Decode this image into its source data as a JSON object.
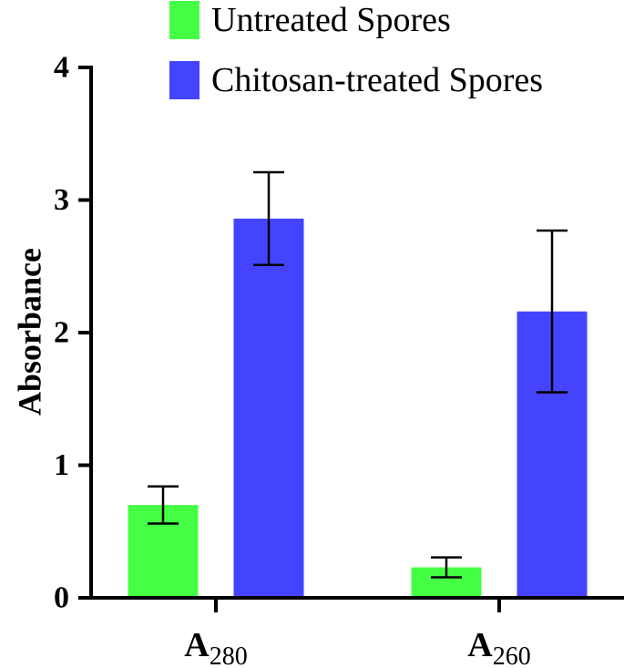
{
  "chart_data": {
    "type": "bar",
    "title": "",
    "xlabel": "",
    "ylabel": "Absorbance",
    "ylim": [
      0,
      4
    ],
    "yticks": [
      "0",
      "1",
      "2",
      "3",
      "4"
    ],
    "grid": false,
    "legend_position": "top-right",
    "categories": [
      {
        "main": "A",
        "sub": "280"
      },
      {
        "main": "A",
        "sub": "260"
      }
    ],
    "series": [
      {
        "name": "Untreated Spores",
        "color": "#44ff44",
        "values": [
          0.7,
          0.23
        ],
        "error": [
          0.14,
          0.075
        ]
      },
      {
        "name": "Chitosan-treated Spores",
        "color": "#4444ff",
        "values": [
          2.86,
          2.16
        ],
        "error": [
          0.35,
          0.61
        ]
      }
    ]
  }
}
